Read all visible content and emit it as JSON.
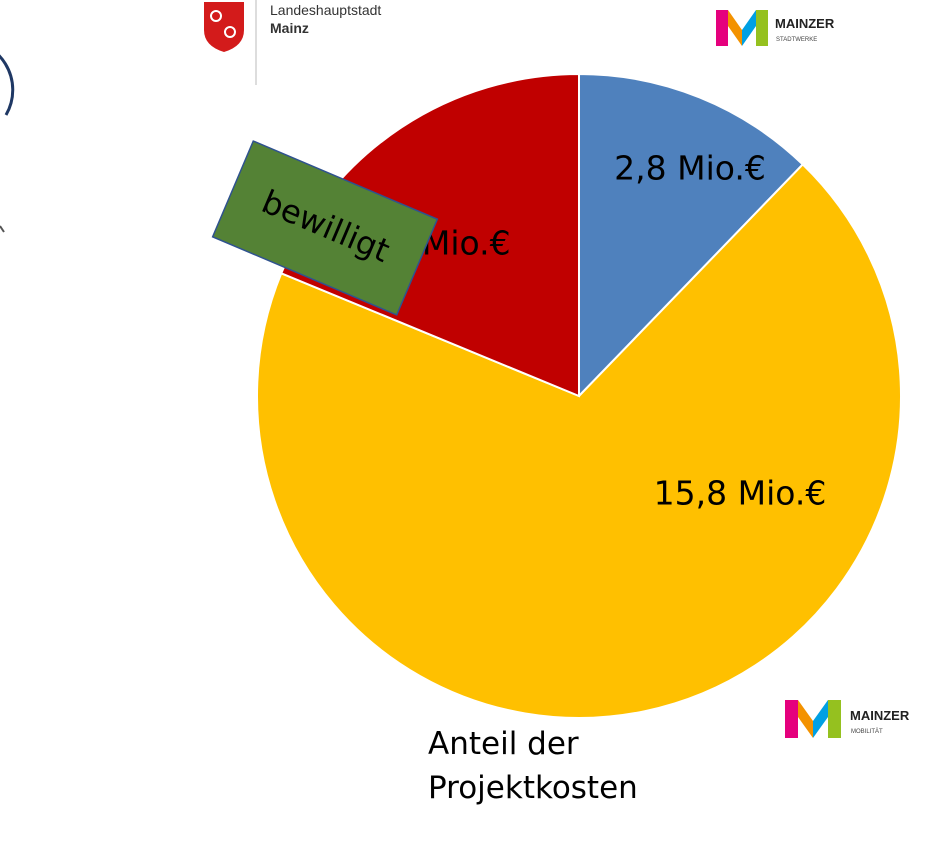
{
  "chart_data": {
    "type": "pie",
    "title": "Anteil der Projektkosten",
    "categories": [
      null,
      null,
      null
    ],
    "values": [
      2.8,
      15.8,
      4.3
    ],
    "value_labels": [
      "2,8 Mio.€",
      "15,8 Mio.€",
      "4,3Mio.€"
    ],
    "colors": [
      "#4f81bd",
      "#ffc000",
      "#c00000"
    ],
    "annotation": "bewilligt"
  },
  "logos": {
    "city_line1": "Landeshauptstadt",
    "city_line2": "Mainz",
    "stadtwerke_name": "MAINZER",
    "stadtwerke_sub": "STADTWERKE",
    "mobilitaet_name": "MAINZER",
    "mobilitaet_sub": "MOBILITÄT"
  }
}
